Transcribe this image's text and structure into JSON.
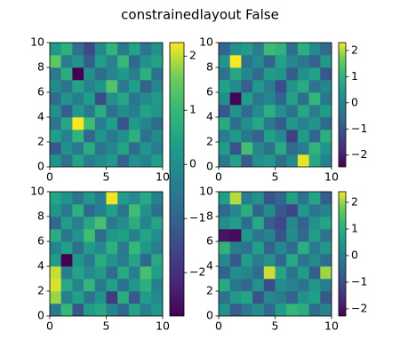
{
  "title": "constrainedlayout False",
  "chart_data": [
    {
      "type": "heatmap",
      "xlim": [
        0,
        10
      ],
      "ylim": [
        0,
        10
      ],
      "xticks": [
        0,
        5,
        10
      ],
      "yticks": [
        0,
        2,
        4,
        6,
        8,
        10
      ],
      "clim": [
        -2.5,
        2.3
      ],
      "z": [
        [
          0.3,
          -0.5,
          0.6,
          -0.2,
          0.1,
          0.4,
          -0.8,
          0.2,
          -0.1,
          0.5
        ],
        [
          -1.0,
          0.2,
          -0.3,
          0.8,
          -0.4,
          0.0,
          0.6,
          -0.6,
          0.3,
          -0.2
        ],
        [
          0.5,
          -0.1,
          1.0,
          -0.7,
          0.3,
          -0.3,
          0.2,
          0.9,
          -0.5,
          0.1
        ],
        [
          -0.4,
          0.7,
          2.3,
          1.2,
          -0.2,
          0.5,
          -1.1,
          0.4,
          0.0,
          -0.6
        ],
        [
          0.2,
          -0.9,
          0.4,
          -0.3,
          0.8,
          -0.5,
          0.1,
          -0.2,
          0.6,
          0.3
        ],
        [
          -0.6,
          0.3,
          -0.2,
          0.5,
          -1.2,
          0.2,
          0.7,
          -0.4,
          0.1,
          0.4
        ],
        [
          0.1,
          -0.4,
          0.6,
          -0.1,
          0.3,
          1.4,
          -0.3,
          0.5,
          -0.8,
          0.0
        ],
        [
          -0.3,
          0.8,
          -2.5,
          0.2,
          -0.6,
          0.0,
          0.4,
          -0.2,
          0.9,
          -0.5
        ],
        [
          1.5,
          -0.2,
          0.3,
          -0.9,
          0.5,
          -0.1,
          1.1,
          -0.7,
          0.2,
          0.6
        ],
        [
          0.4,
          0.9,
          -0.5,
          -1.3,
          0.1,
          1.0,
          -0.3,
          0.6,
          -0.4,
          0.2
        ]
      ]
    },
    {
      "type": "heatmap",
      "xlim": [
        0,
        10
      ],
      "ylim": [
        0,
        10
      ],
      "xticks": [
        0,
        5,
        10
      ],
      "yticks": [
        0,
        2,
        4,
        6,
        8,
        10
      ],
      "clim": [
        -2.45,
        2.3
      ],
      "colorbar_ticks": [
        {
          "value": -2,
          "label": "−2"
        },
        {
          "value": -1,
          "label": "−1"
        },
        0,
        1,
        2
      ],
      "z": [
        [
          -0.3,
          0.6,
          -0.9,
          0.2,
          0.4,
          -0.5,
          0.1,
          2.2,
          0.7,
          -0.1
        ],
        [
          0.5,
          -1.1,
          1.3,
          0.0,
          -0.4,
          0.8,
          -0.6,
          -0.2,
          1.0,
          0.3
        ],
        [
          -0.2,
          0.4,
          -0.3,
          -0.8,
          0.6,
          0.1,
          -1.4,
          0.5,
          -0.7,
          0.9
        ],
        [
          0.8,
          -0.5,
          0.2,
          0.7,
          -0.3,
          -0.9,
          0.4,
          -0.1,
          0.3,
          -0.6
        ],
        [
          -1.0,
          0.3,
          -0.6,
          0.1,
          0.9,
          0.2,
          -0.4,
          0.7,
          -0.2,
          0.5
        ],
        [
          0.2,
          -2.4,
          0.5,
          -0.3,
          0.0,
          -0.7,
          0.6,
          -0.5,
          1.1,
          -0.3
        ],
        [
          0.6,
          0.1,
          -0.8,
          0.4,
          -0.2,
          -1.2,
          0.3,
          0.8,
          -0.4,
          0.0
        ],
        [
          -0.4,
          0.7,
          0.0,
          -0.6,
          0.5,
          0.3,
          -0.9,
          0.2,
          0.6,
          -1.0
        ],
        [
          0.3,
          2.3,
          -0.4,
          0.1,
          -0.7,
          0.6,
          0.0,
          -0.3,
          -0.8,
          0.4
        ],
        [
          -0.7,
          0.2,
          0.5,
          -0.2,
          1.2,
          1.0,
          -0.5,
          0.9,
          0.1,
          -0.6
        ]
      ]
    },
    {
      "type": "heatmap",
      "xlim": [
        0,
        10
      ],
      "ylim": [
        0,
        10
      ],
      "xticks": [
        0,
        5,
        10
      ],
      "yticks": [
        0,
        2,
        4,
        6,
        8,
        10
      ],
      "clim": [
        -2.8,
        2.25
      ],
      "colorbar_ticks": [
        {
          "value": -2,
          "label": "−2"
        },
        {
          "value": -1,
          "label": "−1"
        },
        0,
        1,
        2
      ],
      "z": [
        [
          -0.5,
          1.0,
          -1.3,
          0.3,
          0.6,
          -0.2,
          -0.9,
          0.5,
          -0.4,
          0.2
        ],
        [
          1.8,
          -0.3,
          0.4,
          -0.6,
          0.1,
          -1.8,
          0.7,
          -1.2,
          0.3,
          -0.1
        ],
        [
          2.1,
          0.6,
          -0.2,
          0.9,
          -0.5,
          0.4,
          -0.7,
          0.2,
          0.8,
          -0.3
        ],
        [
          2.0,
          -0.4,
          0.5,
          -0.1,
          0.3,
          -0.8,
          0.6,
          -0.3,
          1.2,
          0.4
        ],
        [
          0.3,
          -2.8,
          0.2,
          -0.5,
          0.7,
          0.1,
          -0.4,
          0.5,
          -0.9,
          0.6
        ],
        [
          -0.2,
          0.4,
          -0.7,
          0.3,
          -0.1,
          0.8,
          -0.5,
          1.0,
          0.2,
          -0.4
        ],
        [
          0.7,
          -0.6,
          0.1,
          1.1,
          -0.8,
          0.2,
          0.4,
          -0.3,
          0.5,
          0.0
        ],
        [
          -0.9,
          0.3,
          -0.4,
          0.6,
          1.2,
          -0.5,
          0.0,
          0.7,
          -0.2,
          0.5
        ],
        [
          0.2,
          -0.5,
          0.8,
          -0.9,
          -0.3,
          0.4,
          -0.6,
          1.1,
          0.1,
          -0.7
        ],
        [
          0.5,
          0.1,
          -0.6,
          0.2,
          -0.4,
          2.2,
          0.3,
          -0.1,
          0.6,
          -0.3
        ]
      ]
    },
    {
      "type": "heatmap",
      "xlim": [
        0,
        10
      ],
      "ylim": [
        0,
        10
      ],
      "xticks": [
        0,
        5,
        10
      ],
      "yticks": [
        0,
        2,
        4,
        6,
        8,
        10
      ],
      "clim": [
        -2.27,
        2.4
      ],
      "colorbar_ticks": [
        {
          "value": -2,
          "label": "−2"
        },
        {
          "value": -1,
          "label": "−1"
        },
        0,
        1,
        2
      ],
      "z": [
        [
          0.4,
          -0.7,
          -0.2,
          0.3,
          -0.5,
          0.6,
          1.2,
          1.0,
          -0.4,
          0.1
        ],
        [
          -0.3,
          0.5,
          0.8,
          -0.9,
          0.2,
          -0.1,
          -0.6,
          0.4,
          0.7,
          -0.8
        ],
        [
          0.9,
          -0.2,
          -0.5,
          0.4,
          -1.0,
          0.3,
          0.1,
          -0.3,
          0.5,
          0.0
        ],
        [
          -0.6,
          0.3,
          0.1,
          -0.4,
          2.2,
          0.8,
          -0.2,
          0.6,
          -0.7,
          2.0
        ],
        [
          0.2,
          -0.8,
          0.6,
          -0.1,
          0.4,
          -0.5,
          0.9,
          -0.3,
          0.2,
          -0.4
        ],
        [
          1.1,
          0.0,
          -0.3,
          0.7,
          -0.6,
          0.2,
          -0.4,
          1.0,
          -0.1,
          0.5
        ],
        [
          -2.0,
          -2.1,
          0.5,
          -0.2,
          0.1,
          -0.9,
          0.3,
          -0.5,
          0.6,
          -0.3
        ],
        [
          0.3,
          0.6,
          -0.4,
          0.9,
          -0.7,
          -1.1,
          0.2,
          -0.6,
          0.4,
          0.8
        ],
        [
          -0.5,
          0.2,
          1.0,
          -0.6,
          0.3,
          -0.8,
          -1.2,
          0.5,
          -0.2,
          0.1
        ],
        [
          0.6,
          2.1,
          -0.1,
          0.4,
          -0.9,
          -0.5,
          0.7,
          -0.3,
          0.8,
          -0.7
        ]
      ]
    }
  ]
}
